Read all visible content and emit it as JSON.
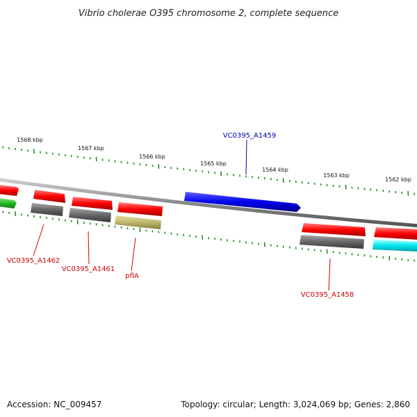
{
  "title": "Vibrio cholerae O395 chromosome 2, complete sequence",
  "scale_labels": [
    "1568 kbp",
    "1567 kbp",
    "1566 kbp",
    "1565 kbp",
    "1564 kbp",
    "1563 kbp",
    "1562 kbp"
  ],
  "gene_labels": {
    "top": "VC0395_A1459",
    "a1462": "VC0395_A1462",
    "a1461": "VC0395_A1461",
    "pfla": "pflA",
    "a1458": "VC0395_A1458"
  },
  "footer": {
    "accession": "Accession: NC_009457",
    "summary": "Topology: circular; Length: 3,024,069 bp; Genes: 2,860"
  },
  "colors": {
    "forward_cds": "#ff0000",
    "reverse_cds_highlight": "#0000ee",
    "gene": "#6e6e6e",
    "rna_yellow": "#bdb76b",
    "green": "#22bb22",
    "cyan": "#00e5ee",
    "tick": "#228b22",
    "label_red": "#cc0000",
    "label_blue": "#0000aa"
  }
}
